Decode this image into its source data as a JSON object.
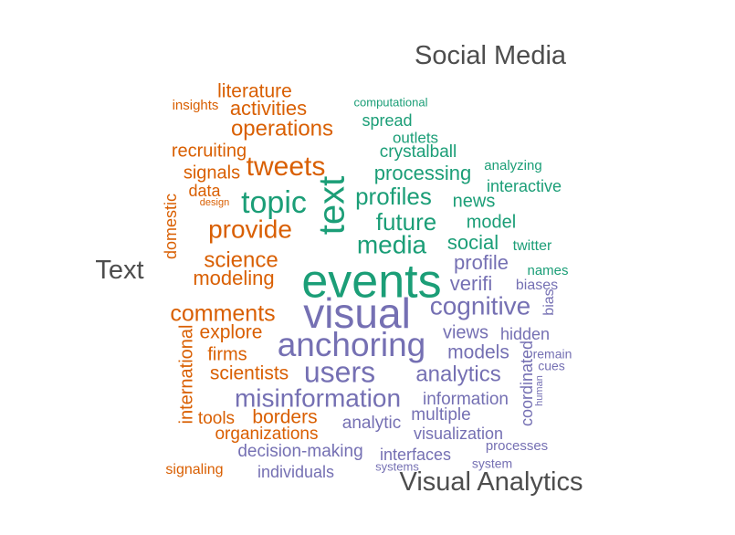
{
  "colors": {
    "Text": "#d95f02",
    "Social Media": "#1b9e77",
    "Visual Analytics": "#7570b3",
    "group_label": "#4d4d4d"
  },
  "chart_data": {
    "type": "wordcloud",
    "groups": [
      {
        "name": "Social Media",
        "words": [
          {
            "text": "events",
            "weight": 52
          },
          {
            "text": "text",
            "weight": 40
          },
          {
            "text": "topic",
            "weight": 34
          },
          {
            "text": "media",
            "weight": 28
          },
          {
            "text": "profiles",
            "weight": 26
          },
          {
            "text": "future",
            "weight": 26
          },
          {
            "text": "processing",
            "weight": 22
          },
          {
            "text": "social",
            "weight": 22
          },
          {
            "text": "news",
            "weight": 20
          },
          {
            "text": "model",
            "weight": 20
          },
          {
            "text": "crystalball",
            "weight": 19
          },
          {
            "text": "spread",
            "weight": 18
          },
          {
            "text": "outlets",
            "weight": 17
          },
          {
            "text": "interactive",
            "weight": 18
          },
          {
            "text": "analyzing",
            "weight": 15
          },
          {
            "text": "twitter",
            "weight": 16
          },
          {
            "text": "names",
            "weight": 15
          },
          {
            "text": "computational",
            "weight": 13
          }
        ]
      },
      {
        "name": "Text",
        "words": [
          {
            "text": "tweets",
            "weight": 30
          },
          {
            "text": "provide",
            "weight": 28
          },
          {
            "text": "operations",
            "weight": 24
          },
          {
            "text": "comments",
            "weight": 25
          },
          {
            "text": "science",
            "weight": 24
          },
          {
            "text": "modeling",
            "weight": 22
          },
          {
            "text": "activities",
            "weight": 22
          },
          {
            "text": "literature",
            "weight": 21
          },
          {
            "text": "recruiting",
            "weight": 20
          },
          {
            "text": "signals",
            "weight": 20
          },
          {
            "text": "explore",
            "weight": 21
          },
          {
            "text": "firms",
            "weight": 20
          },
          {
            "text": "scientists",
            "weight": 21
          },
          {
            "text": "borders",
            "weight": 21
          },
          {
            "text": "tools",
            "weight": 19
          },
          {
            "text": "organizations",
            "weight": 19
          },
          {
            "text": "international",
            "weight": 20
          },
          {
            "text": "domestic",
            "weight": 18
          },
          {
            "text": "data",
            "weight": 18
          },
          {
            "text": "insights",
            "weight": 15
          },
          {
            "text": "signaling",
            "weight": 16
          },
          {
            "text": "design",
            "weight": 11
          }
        ]
      },
      {
        "name": "Visual Analytics",
        "words": [
          {
            "text": "visual",
            "weight": 46
          },
          {
            "text": "anchoring",
            "weight": 37
          },
          {
            "text": "users",
            "weight": 32
          },
          {
            "text": "cognitive",
            "weight": 28
          },
          {
            "text": "misinformation",
            "weight": 28
          },
          {
            "text": "analytics",
            "weight": 24
          },
          {
            "text": "verifi",
            "weight": 22
          },
          {
            "text": "profile",
            "weight": 22
          },
          {
            "text": "models",
            "weight": 21
          },
          {
            "text": "views",
            "weight": 20
          },
          {
            "text": "information",
            "weight": 19
          },
          {
            "text": "multiple",
            "weight": 19
          },
          {
            "text": "analytic",
            "weight": 19
          },
          {
            "text": "visualization",
            "weight": 18
          },
          {
            "text": "hidden",
            "weight": 18
          },
          {
            "text": "decision-making",
            "weight": 19
          },
          {
            "text": "interfaces",
            "weight": 18
          },
          {
            "text": "individuals",
            "weight": 18
          },
          {
            "text": "coordinated",
            "weight": 18
          },
          {
            "text": "biases",
            "weight": 16
          },
          {
            "text": "bias",
            "weight": 16
          },
          {
            "text": "processes",
            "weight": 15
          },
          {
            "text": "remain",
            "weight": 14
          },
          {
            "text": "cues",
            "weight": 14
          },
          {
            "text": "system",
            "weight": 14
          },
          {
            "text": "systems",
            "weight": 13
          },
          {
            "text": "human",
            "weight": 11
          }
        ]
      }
    ]
  }
}
